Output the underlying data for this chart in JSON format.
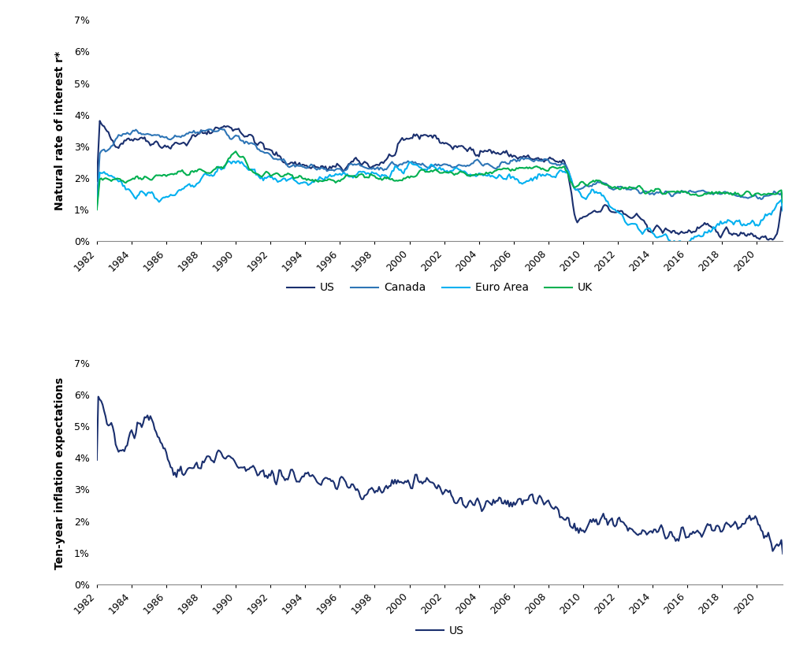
{
  "colors": {
    "US": "#1a2f6e",
    "Canada": "#2e75b6",
    "Euro_Area": "#00b0f0",
    "UK": "#00b050"
  },
  "line_width": 1.5,
  "ylabel1": "Natural rate of interest r*",
  "ylabel2": "Ten-year inflation expectations",
  "legend1": [
    "US",
    "Canada",
    "Euro Area",
    "UK"
  ],
  "legend2": [
    "US"
  ],
  "ylim": [
    0,
    0.07
  ],
  "yticks": [
    0.0,
    0.01,
    0.02,
    0.03,
    0.04,
    0.05,
    0.06,
    0.07
  ],
  "background_color": "#ffffff",
  "fig_bg": "#ffffff"
}
